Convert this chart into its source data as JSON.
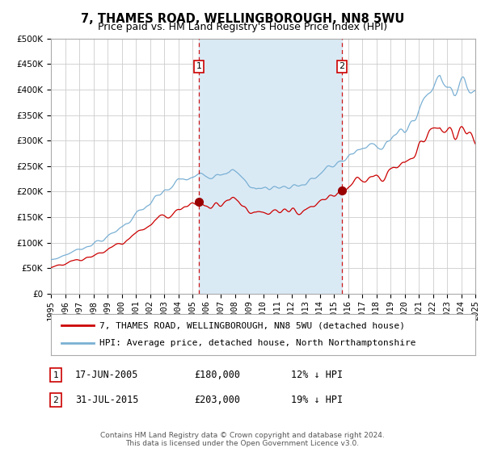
{
  "title": "7, THAMES ROAD, WELLINGBOROUGH, NN8 5WU",
  "subtitle": "Price paid vs. HM Land Registry's House Price Index (HPI)",
  "legend_line1": "7, THAMES ROAD, WELLINGBOROUGH, NN8 5WU (detached house)",
  "legend_line2": "HPI: Average price, detached house, North Northamptonshire",
  "transaction1_label": "1",
  "transaction1_date": "17-JUN-2005",
  "transaction1_price": "£180,000",
  "transaction1_hpi": "12% ↓ HPI",
  "transaction1_year": 2005.46,
  "transaction1_value": 180000,
  "transaction2_label": "2",
  "transaction2_date": "31-JUL-2015",
  "transaction2_price": "£203,000",
  "transaction2_hpi": "19% ↓ HPI",
  "transaction2_year": 2015.58,
  "transaction2_value": 203000,
  "hpi_color": "#7ab0d4",
  "price_color": "#cc0000",
  "fill_color": "#daeaf5",
  "marker_color": "#990000",
  "vline_color": "#cc0000",
  "grid_color": "#cccccc",
  "bg_color": "#ffffff",
  "ylim": [
    0,
    500000
  ],
  "ytick_interval": 50000,
  "xmin": 1995,
  "xmax": 2025,
  "footer": "Contains HM Land Registry data © Crown copyright and database right 2024.\nThis data is licensed under the Open Government Licence v3.0.",
  "title_fontsize": 10.5,
  "subtitle_fontsize": 9,
  "tick_fontsize": 7.5,
  "legend_fontsize": 8,
  "footer_fontsize": 6.5
}
